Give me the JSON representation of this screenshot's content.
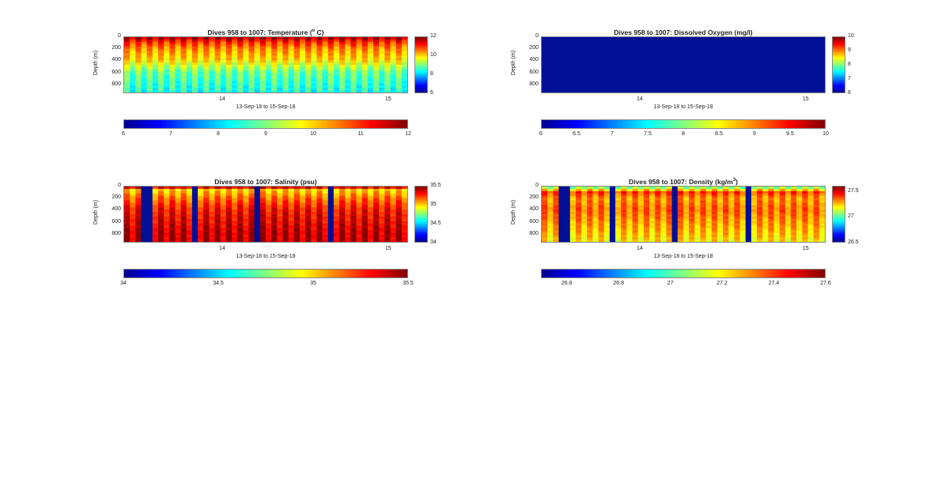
{
  "jet": [
    "#00008f",
    "#0000ff",
    "#0080ff",
    "#00ffff",
    "#80ff80",
    "#ffff00",
    "#ff8000",
    "#ff0000",
    "#800000"
  ],
  "fill_blue": "#000f96",
  "panels": [
    {
      "id": "temperature",
      "title_main": "Dives 958 to 1007: Temperature (",
      "title_sup": "o",
      "title_tail": " C)",
      "ylabel": "Depth (m)",
      "xlabel": "13-Sep-18 to 15-Sep-18",
      "yticks": [
        "0",
        "200",
        "400",
        "600",
        "800"
      ],
      "xticks": [
        "14",
        "15"
      ],
      "vbar_ticks": [
        "12",
        "10",
        "8",
        "6"
      ],
      "hbar_ticks": [
        "6",
        "7",
        "8",
        "9",
        "10",
        "11",
        "12"
      ],
      "chart_data": {
        "type": "heatmap",
        "variable": "Temperature",
        "units": "deg C",
        "dives": [
          958,
          1007
        ],
        "x_range": [
          "13-Sep-18",
          "15-Sep-18"
        ],
        "ylim": [
          0,
          950
        ],
        "clim": [
          6,
          12
        ],
        "profile_mean": [
          [
            0,
            11.8
          ],
          [
            100,
            10.9
          ],
          [
            200,
            10.4
          ],
          [
            400,
            9.9
          ],
          [
            600,
            8.9
          ],
          [
            800,
            8.6
          ],
          [
            950,
            8.4
          ]
        ],
        "gaps": []
      }
    },
    {
      "id": "oxygen",
      "title_main": "Dives 958 to 1007: Dissolved Oxygen (mg/l)",
      "title_sup": "",
      "title_tail": "",
      "ylabel": "Depth (m)",
      "xlabel": "13-Sep-18 to 15-Sep-18",
      "yticks": [
        "0",
        "200",
        "400",
        "600",
        "800"
      ],
      "xticks": [
        "14",
        "15"
      ],
      "vbar_ticks": [
        "10",
        "9",
        "8",
        "7",
        "6"
      ],
      "hbar_ticks": [
        "6",
        "6.5",
        "7",
        "7.5",
        "8",
        "8.5",
        "9",
        "9.5",
        "10"
      ],
      "chart_data": {
        "type": "heatmap",
        "variable": "Dissolved Oxygen",
        "units": "mg/l",
        "dives": [
          958,
          1007
        ],
        "x_range": [
          "13-Sep-18",
          "15-Sep-18"
        ],
        "ylim": [
          0,
          950
        ],
        "clim": [
          6,
          10
        ],
        "profile_mean": [
          [
            0,
            6.0
          ],
          [
            950,
            6.0
          ]
        ],
        "uniform_below_clim": true,
        "gaps": []
      }
    },
    {
      "id": "salinity",
      "title_main": "Dives 958 to 1007: Salinity (psu)",
      "title_sup": "",
      "title_tail": "",
      "ylabel": "Depth (m)",
      "xlabel": "13-Sep-18 to 15-Sep-18",
      "yticks": [
        "0",
        "200",
        "400",
        "600",
        "800"
      ],
      "xticks": [
        "14",
        "15"
      ],
      "vbar_ticks": [
        "35.5",
        "35",
        "34.5",
        "34"
      ],
      "hbar_ticks": [
        "34",
        "34.5",
        "35",
        "35.5"
      ],
      "chart_data": {
        "type": "heatmap",
        "variable": "Salinity",
        "units": "psu",
        "dives": [
          958,
          1007
        ],
        "x_range": [
          "13-Sep-18",
          "15-Sep-18"
        ],
        "ylim": [
          0,
          950
        ],
        "clim": [
          34,
          35.5
        ],
        "profile_mean": [
          [
            0,
            35.5
          ],
          [
            60,
            35.0
          ],
          [
            200,
            35.15
          ],
          [
            400,
            35.3
          ],
          [
            600,
            35.35
          ],
          [
            800,
            35.4
          ],
          [
            950,
            35.4
          ]
        ],
        "gaps": [
          [
            0.06,
            0.1
          ],
          [
            0.24,
            0.26
          ],
          [
            0.46,
            0.485
          ],
          [
            0.72,
            0.74
          ]
        ]
      }
    },
    {
      "id": "density",
      "title_main": "Dives 958 to 1007: Density (kg/m",
      "title_sup": "3",
      "title_tail": ")",
      "ylabel": "Depth (m)",
      "xlabel": "13-Sep-18 to 15-Sep-18",
      "yticks": [
        "0",
        "200",
        "400",
        "600",
        "800"
      ],
      "xticks": [
        "14",
        "15"
      ],
      "vbar_ticks": [
        "27.5",
        "27",
        "26.5"
      ],
      "hbar_ticks": [
        "26.6",
        "26.8",
        "27",
        "27.2",
        "27.4",
        "27.6"
      ],
      "chart_data": {
        "type": "heatmap",
        "variable": "Density",
        "units": "kg/m3",
        "dives": [
          958,
          1007
        ],
        "x_range": [
          "13-Sep-18",
          "15-Sep-18"
        ],
        "ylim": [
          0,
          950
        ],
        "clim": [
          26.5,
          27.6
        ],
        "profile_mean": [
          [
            0,
            27.0
          ],
          [
            100,
            27.4
          ],
          [
            200,
            27.3
          ],
          [
            400,
            27.35
          ],
          [
            600,
            27.3
          ],
          [
            800,
            27.25
          ],
          [
            950,
            27.2
          ]
        ],
        "gaps": [
          [
            0.06,
            0.1
          ],
          [
            0.24,
            0.26
          ],
          [
            0.46,
            0.485
          ],
          [
            0.72,
            0.74
          ]
        ]
      }
    }
  ]
}
